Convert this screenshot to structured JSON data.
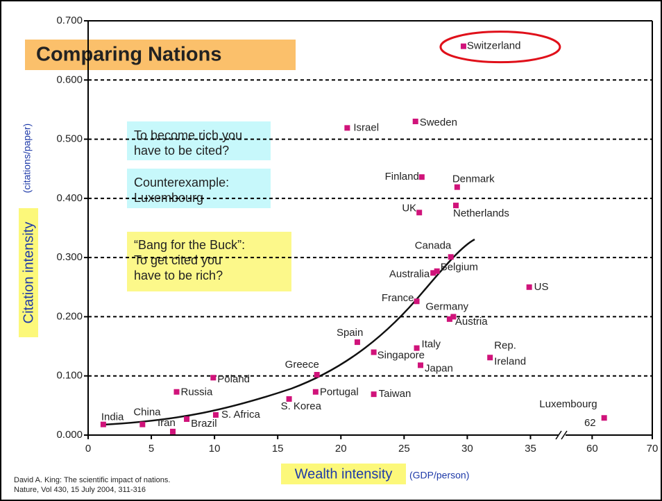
{
  "title": "Comparing Nations",
  "notes": [
    [
      "To become rich you",
      "have to be cited?"
    ],
    [
      "Counterexample:",
      "Luxembourg"
    ],
    [
      "“Bang for the Buck”:",
      "To get cited you",
      "have to be rich?"
    ]
  ],
  "source": [
    "David A. King: The scientific impact of nations.",
    "Nature, Vol 430, 15 July 2004, 311-316"
  ],
  "chart_data": {
    "type": "scatter",
    "y_label": "Citation intensity",
    "y_unit": "(citations/paper)",
    "x_label": "Wealth intensity",
    "x_unit": "(GDP/person)",
    "color": "#d0137a",
    "highlight": "Switzerland",
    "axis_break": [
      37.5,
      55
    ],
    "xlim": [
      0,
      70
    ],
    "xticks": [
      0,
      5,
      10,
      15,
      20,
      25,
      30,
      35,
      60,
      70
    ],
    "ylim": [
      0,
      0.7
    ],
    "yticks": [
      {
        "value": 0,
        "label": "0.000"
      },
      {
        "value": 0.1,
        "label": "0.100"
      },
      {
        "value": 0.2,
        "label": "0.200"
      },
      {
        "value": 0.3,
        "label": "0.300"
      },
      {
        "value": 0.4,
        "label": "0.400"
      },
      {
        "value": 0.5,
        "label": "0.500"
      },
      {
        "value": 0.6,
        "label": "0.600"
      },
      {
        "value": 0.7,
        "label": "0.700"
      }
    ],
    "grid": true,
    "labels": [
      "India",
      "China",
      "Iran",
      "Brazil",
      "S. Africa",
      "Russia",
      "Poland",
      "Greece",
      "Portugal",
      "S. Korea",
      "Taiwan",
      "Spain",
      "Singapore",
      "Italy",
      "Japan",
      "France",
      "Germany",
      "Austria",
      "Australia",
      "Belgium",
      "Canada",
      "US",
      "Rep. Ireland",
      "UK",
      "Netherlands",
      "Denmark",
      "Finland",
      "Israel",
      "Sweden",
      "Switzerland",
      "Luxembourg"
    ],
    "x": [
      1.2,
      4.3,
      6.7,
      7.8,
      10.1,
      7.0,
      9.9,
      18.1,
      18.0,
      15.9,
      22.6,
      21.3,
      22.6,
      26.0,
      26.3,
      26.0,
      28.9,
      28.6,
      27.3,
      27.6,
      28.7,
      34.9,
      31.8,
      26.2,
      29.1,
      29.2,
      26.4,
      20.5,
      25.9,
      29.7,
      62
    ],
    "values": [
      0.018,
      0.018,
      0.006,
      0.027,
      0.034,
      0.073,
      0.097,
      0.102,
      0.073,
      0.061,
      0.069,
      0.157,
      0.14,
      0.147,
      0.118,
      0.226,
      0.2,
      0.196,
      0.274,
      0.277,
      0.301,
      0.25,
      0.131,
      0.376,
      0.388,
      0.419,
      0.436,
      0.519,
      0.53,
      0.657,
      0.029
    ]
  }
}
